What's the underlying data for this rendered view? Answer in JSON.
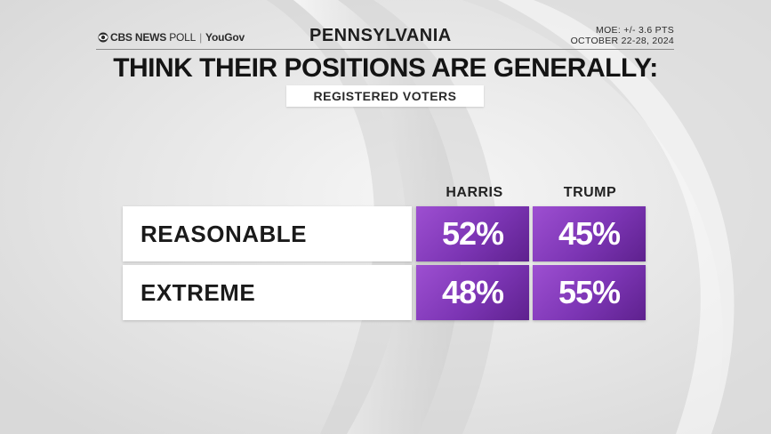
{
  "header": {
    "brand_cbs": "CBS NEWS",
    "brand_poll": "POLL",
    "brand_partner": "YouGov",
    "state": "PENNSYLVANIA",
    "moe": "MOE: +/- 3.6 PTS",
    "dates": "OCTOBER 22-28, 2024"
  },
  "title": "THINK THEIR POSITIONS ARE GENERALLY:",
  "subtitle": "REGISTERED VOTERS",
  "colors": {
    "cell_purple": "#7c35b4",
    "background": "#e9e9e9"
  },
  "chart_data": {
    "type": "table",
    "title": "THINK THEIR POSITIONS ARE GENERALLY:",
    "subtitle": "REGISTERED VOTERS",
    "columns": [
      "HARRIS",
      "TRUMP"
    ],
    "rows": [
      {
        "label": "REASONABLE",
        "values": [
          "52%",
          "45%"
        ]
      },
      {
        "label": "EXTREME",
        "values": [
          "48%",
          "55%"
        ]
      }
    ],
    "series": [
      {
        "name": "HARRIS",
        "values": [
          52,
          48
        ]
      },
      {
        "name": "TRUMP",
        "values": [
          45,
          55
        ]
      }
    ],
    "categories": [
      "REASONABLE",
      "EXTREME"
    ]
  }
}
